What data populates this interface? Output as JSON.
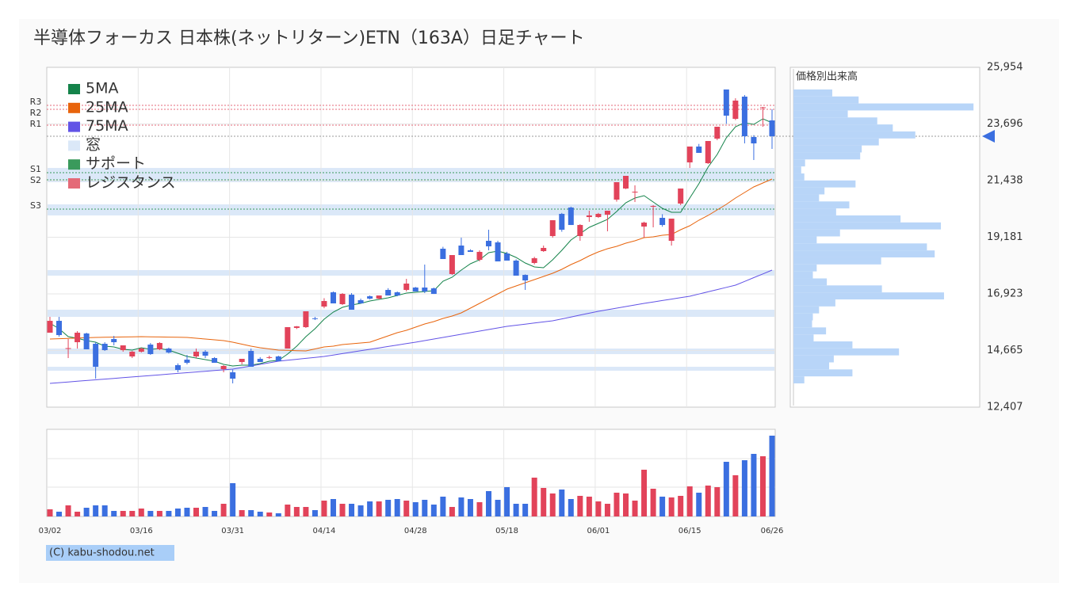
{
  "chart_data": {
    "type": "candlestick",
    "title": "半導体フォーカス 日本株(ネットリターン)ETN（163A）日足チャート",
    "categories": [
      "03/02",
      null,
      null,
      null,
      null,
      null,
      null,
      null,
      null,
      null,
      "03/16",
      null,
      null,
      null,
      null,
      null,
      null,
      null,
      null,
      null,
      "03/31",
      null,
      null,
      null,
      null,
      null,
      null,
      null,
      null,
      null,
      "04/14",
      null,
      null,
      null,
      null,
      null,
      null,
      null,
      null,
      null,
      "04/28",
      null,
      null,
      null,
      null,
      null,
      null,
      null,
      null,
      null,
      "05/18",
      null,
      null,
      null,
      null,
      null,
      null,
      null,
      null,
      null,
      "06/01",
      null,
      null,
      null,
      null,
      null,
      null,
      null,
      null,
      null,
      "06/15",
      null,
      null,
      null,
      null,
      null,
      null,
      null,
      null,
      "06/26"
    ],
    "open": [
      15375,
      15848,
      14743,
      14996,
      15343,
      14933,
      14933,
      15122,
      14680,
      14428,
      14617,
      14901,
      14712,
      14743,
      14080,
      14301,
      14428,
      14617,
      14364,
      13922,
      13796,
      14207,
      14648,
      14333,
      14380,
      14428,
      14743,
      15564,
      15596,
      15950,
      16417,
      16985,
      16512,
      16890,
      16670,
      16827,
      16733,
      17080,
      16985,
      17080,
      17175,
      17175,
      17143,
      18723,
      17712,
      18849,
      18659,
      18280,
      19038,
      18975,
      18533,
      18249,
      17680,
      18154,
      18628,
      19228,
      20112,
      20364,
      19228,
      19985,
      19985,
      20080,
      20680,
      21122,
      20980,
      19606,
      20400,
      19954,
      19038,
      20522,
      22164,
      22796,
      22133,
      23112,
      25070,
      23901,
      24786,
      23175,
      24350,
      23838
    ],
    "high": [
      16006,
      16006,
      15122,
      15438,
      15375,
      14996,
      14996,
      15248,
      14743,
      14648,
      14780,
      14964,
      14996,
      14780,
      14150,
      14491,
      14743,
      14680,
      14400,
      14080,
      13900,
      14333,
      14743,
      14400,
      14460,
      14460,
      15596,
      15640,
      16228,
      16006,
      16750,
      17017,
      16954,
      16954,
      16733,
      16860,
      16860,
      17150,
      17017,
      17522,
      17200,
      18091,
      17175,
      18800,
      18470,
      19164,
      18700,
      18659,
      19480,
      19040,
      18600,
      18300,
      17700,
      18400,
      18849,
      19860,
      20150,
      20400,
      19700,
      20238,
      20150,
      20238,
      21375,
      21628,
      21249,
      19800,
      20459,
      20100,
      19922,
      21122,
      22796,
      22900,
      23017,
      23586,
      25070,
      24720,
      24850,
      23250,
      24375,
      24280
    ],
    "low": [
      15375,
      15217,
      14364,
      14743,
      14712,
      13543,
      14648,
      14870,
      14617,
      14364,
      14585,
      14491,
      14680,
      14550,
      13796,
      14112,
      14364,
      14364,
      14175,
      13796,
      13354,
      14112,
      14017,
      14207,
      14330,
      14238,
      14743,
      15520,
      15564,
      15880,
      16350,
      16543,
      16480,
      16291,
      16543,
      16700,
      16700,
      16859,
      16827,
      17020,
      17017,
      16954,
      16920,
      18312,
      17680,
      18470,
      18596,
      18220,
      18659,
      18217,
      18249,
      17649,
      17080,
      18100,
      18596,
      19164,
      19400,
      19669,
      19038,
      19796,
      19950,
      19417,
      20600,
      21100,
      20585,
      19164,
      19575,
      19600,
      18849,
      20460,
      21943,
      22543,
      22100,
      23050,
      23700,
      23850,
      22922,
      22259,
      23586,
      22701
    ],
    "close": [
      15848,
      15280,
      14760,
      15375,
      14712,
      14017,
      14680,
      14996,
      14870,
      14617,
      14743,
      14522,
      14964,
      14585,
      13891,
      14175,
      14617,
      14459,
      14175,
      14049,
      13543,
      14333,
      14017,
      14207,
      14400,
      14238,
      15596,
      15627,
      16228,
      15943,
      16638,
      16543,
      16922,
      16291,
      16543,
      16733,
      16859,
      16859,
      16859,
      17333,
      17017,
      17017,
      16922,
      18312,
      18470,
      18470,
      18596,
      18596,
      18817,
      18217,
      18249,
      17649,
      17459,
      18343,
      18754,
      19859,
      19480,
      19669,
      19669,
      20049,
      20112,
      20238,
      21375,
      21628,
      20996,
      19764,
      20428,
      19669,
      19922,
      21122,
      22796,
      22543,
      23017,
      23586,
      24028,
      24628,
      23207,
      22922,
      24360,
      23207
    ],
    "up_color": "#e2435a",
    "down_color": "#3b6fe0",
    "ylim": [
      12407,
      25954
    ],
    "yticks": [
      {
        "value": 12407,
        "label": "12,407"
      },
      {
        "value": 14665,
        "label": "14,665"
      },
      {
        "value": 16923,
        "label": "16,923"
      },
      {
        "value": 19181,
        "label": "19,181"
      },
      {
        "value": 21438,
        "label": "21,438"
      },
      {
        "value": 23696,
        "label": "23,696"
      },
      {
        "value": 25954,
        "label": "25,954"
      }
    ],
    "grid": true,
    "series": [
      {
        "name": "5MA",
        "color": "#14834a",
        "values": [
          15754,
          15533,
          15217,
          15154,
          15059,
          14996,
          14838,
          14806,
          14712,
          14680,
          14775,
          14712,
          14743,
          14680,
          14554,
          14428,
          14364,
          14301,
          14238,
          14112,
          14049,
          14080,
          14080,
          14143,
          14238,
          14270,
          14522,
          14838,
          15217,
          15533,
          15912,
          16196,
          16385,
          16480,
          16543,
          16638,
          16701,
          16764,
          16859,
          16954,
          16985,
          17017,
          17048,
          17427,
          17586,
          17870,
          18122,
          18280,
          18565,
          18628,
          18533,
          18375,
          18154,
          17996,
          17964,
          18280,
          18659,
          19070,
          19322,
          19575,
          19733,
          19890,
          20206,
          20554,
          20743,
          20838,
          20585,
          20333,
          20175,
          20175,
          20743,
          21312,
          21975,
          22480,
          23143,
          23586,
          23744,
          23680,
          23901,
          23744
        ]
      },
      {
        "name": "25MA",
        "color": "#e8640c",
        "values": [
          15122,
          15135,
          15147,
          15160,
          15173,
          15185,
          15192,
          15198,
          15204,
          15211,
          15217,
          15211,
          15204,
          15198,
          15192,
          15185,
          15154,
          15122,
          15090,
          15059,
          14996,
          14917,
          14838,
          14775,
          14727,
          14680,
          14670,
          14658,
          14648,
          14727,
          14806,
          14838,
          14901,
          14933,
          14964,
          14996,
          15122,
          15248,
          15375,
          15469,
          15596,
          15722,
          15817,
          15943,
          16038,
          16164,
          16354,
          16543,
          16733,
          16922,
          17112,
          17238,
          17364,
          17491,
          17617,
          17743,
          17901,
          18091,
          18248,
          18438,
          18596,
          18722,
          18817,
          18943,
          19038,
          19164,
          19196,
          19259,
          19291,
          19480,
          19638,
          19859,
          20049,
          20270,
          20491,
          20743,
          20964,
          21185,
          21343,
          21501
        ]
      },
      {
        "name": "75MA",
        "color": "#6253e6",
        "values": [
          13354,
          13382,
          13411,
          13439,
          13468,
          13496,
          13524,
          13553,
          13581,
          13610,
          13638,
          13666,
          13695,
          13723,
          13752,
          13780,
          13808,
          13837,
          13865,
          13894,
          13922,
          13985,
          14048,
          14112,
          14175,
          14238,
          14276,
          14314,
          14352,
          14390,
          14428,
          14485,
          14542,
          14598,
          14655,
          14712,
          14769,
          14826,
          14883,
          14940,
          14996,
          15059,
          15122,
          15185,
          15248,
          15312,
          15375,
          15438,
          15501,
          15564,
          15627,
          15671,
          15715,
          15760,
          15804,
          15848,
          15924,
          16000,
          16075,
          16151,
          16227,
          16290,
          16353,
          16417,
          16480,
          16543,
          16600,
          16657,
          16714,
          16770,
          16827,
          16915,
          17004,
          17092,
          17181,
          17269,
          17419,
          17569,
          17719,
          17869
        ]
      }
    ],
    "windows": {
      "name": "窓",
      "color": "#dbe8f8",
      "ranges": [
        [
          21943,
          21375
        ],
        [
          20491,
          20049
        ],
        [
          17870,
          17649
        ],
        [
          16291,
          16006
        ],
        [
          14743,
          14522
        ],
        [
          14017,
          13859
        ]
      ]
    },
    "support": {
      "name": "サポート",
      "color": "#3a9a5c",
      "levels": [
        {
          "label": "S1",
          "value": 21754
        },
        {
          "label": "S2",
          "value": 21470
        },
        {
          "label": "S3",
          "value": 20301
        }
      ]
    },
    "resistance": {
      "name": "レジスタンス",
      "color": "#e46a78",
      "levels": [
        {
          "label": "R1",
          "value": 23649
        },
        {
          "label": "R2",
          "value": 24280
        },
        {
          "label": "R3",
          "value": 24438
        }
      ]
    },
    "volume": {
      "values": [
        9,
        6,
        14,
        6,
        11,
        14,
        14,
        7,
        7,
        7,
        10,
        7,
        7,
        7,
        10,
        11,
        11,
        12,
        7,
        16,
        42,
        8,
        8,
        6,
        5,
        4,
        15,
        12,
        12,
        8,
        20,
        22,
        16,
        16,
        14,
        19,
        19,
        21,
        22,
        20,
        18,
        21,
        15,
        25,
        12,
        24,
        22,
        18,
        32,
        21,
        37,
        16,
        16,
        49,
        36,
        29,
        34,
        22,
        26,
        25,
        19,
        16,
        30,
        29,
        20,
        59,
        35,
        25,
        24,
        26,
        38,
        30,
        39,
        37,
        69,
        52,
        71,
        79,
        76,
        102
      ],
      "ylim": [
        0,
        110
      ],
      "yticks": [
        37,
        73
      ]
    },
    "profile": {
      "title": "価格別出来高",
      "color": "#b8d5f8",
      "xlim": [
        0,
        240
      ],
      "bins": [
        13354,
        13633,
        13912,
        14191,
        14470,
        14749,
        15028,
        15307,
        15586,
        15865,
        16144,
        16423,
        16702,
        16981,
        17260,
        17539,
        17818,
        18097,
        18376,
        18655,
        18934,
        19213,
        19492,
        19771,
        20050,
        20329,
        20608,
        20887,
        21166,
        21445,
        21724,
        22003,
        22282,
        22561,
        22840,
        23119,
        23398,
        23677,
        23956,
        24235,
        24514,
        24793,
        25072
      ],
      "values": [
        14,
        76,
        46,
        52,
        136,
        76,
        26,
        42,
        24,
        25,
        33,
        54,
        194,
        114,
        43,
        25,
        30,
        113,
        182,
        172,
        30,
        60,
        190,
        138,
        55,
        72,
        33,
        40,
        80,
        14,
        10,
        15,
        86,
        88,
        110,
        157,
        128,
        108,
        70,
        232,
        84,
        50
      ]
    },
    "credit": "(C) kabu-shodou.net"
  }
}
